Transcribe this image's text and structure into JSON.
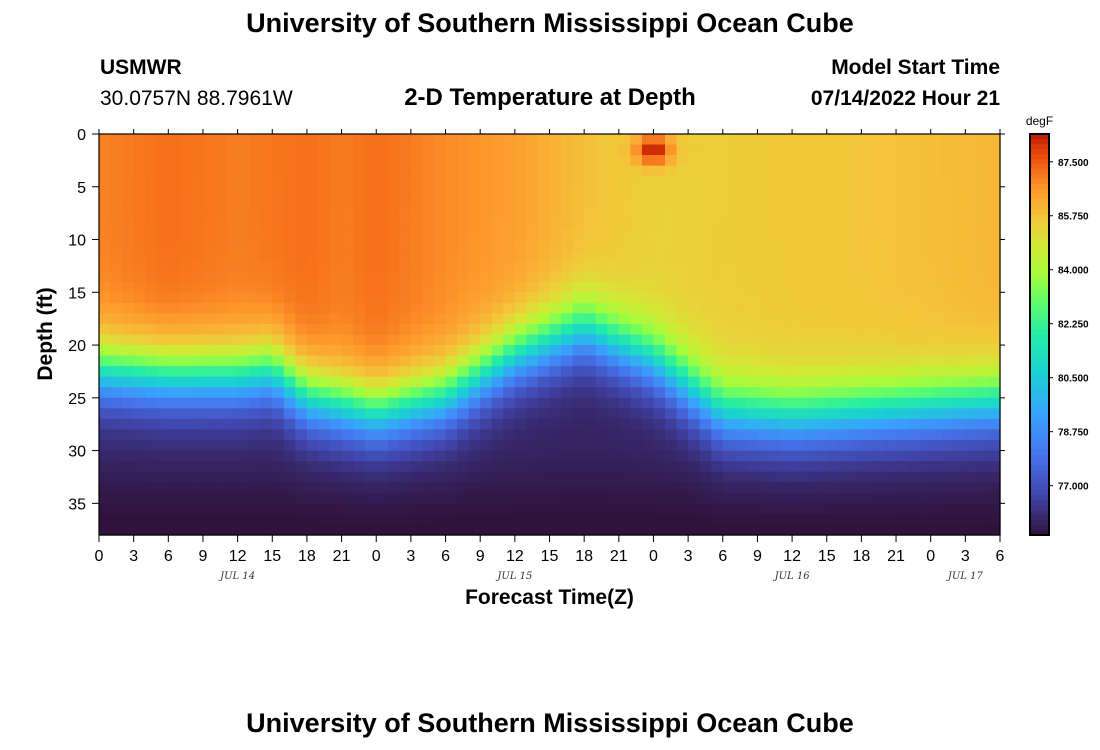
{
  "header": {
    "title": "University of Southern Mississippi Ocean Cube",
    "station": "USMWR",
    "coords": "30.0757N  88.7961W",
    "plot_title": "2-D Temperature at Depth",
    "start_label": "Model Start Time",
    "start_value": "07/14/2022 Hour 21"
  },
  "footer": {
    "title": "University of Southern Mississippi Ocean Cube"
  },
  "chart_data": {
    "type": "heatmap",
    "title": "2-D Temperature at Depth",
    "xlabel": "Forecast Time(Z)",
    "ylabel": "Depth (ft)",
    "xlim": [
      0,
      78
    ],
    "ylim": [
      38,
      0
    ],
    "x_ticks": [
      0,
      3,
      6,
      9,
      12,
      15,
      18,
      21,
      24,
      27,
      30,
      33,
      36,
      39,
      42,
      45,
      48,
      51,
      54,
      57,
      60,
      63,
      66,
      69,
      72,
      75,
      78
    ],
    "x_tick_labels": [
      "0",
      "3",
      "6",
      "9",
      "12",
      "15",
      "18",
      "21",
      "0",
      "3",
      "6",
      "9",
      "12",
      "15",
      "18",
      "21",
      "0",
      "3",
      "6",
      "9",
      "12",
      "15",
      "18",
      "21",
      "0",
      "3",
      "6"
    ],
    "date_labels": [
      {
        "hour": 12,
        "label": "JUL 14"
      },
      {
        "hour": 36,
        "label": "JUL 15"
      },
      {
        "hour": 60,
        "label": "JUL 16"
      },
      {
        "hour": 75,
        "label": "JUL 17"
      }
    ],
    "y_ticks": [
      0,
      5,
      10,
      15,
      20,
      25,
      30,
      35
    ],
    "colorbar": {
      "units": "degF",
      "range": [
        75.4,
        88.4
      ],
      "ticks": [
        87.5,
        85.75,
        84.0,
        82.25,
        80.5,
        78.75,
        77.0
      ],
      "tick_labels": [
        "87.500",
        "85.750",
        "84.000",
        "82.250",
        "80.500",
        "78.750",
        "77.000"
      ]
    },
    "surface_temp_by_hour": {
      "hours": [
        0,
        6,
        12,
        18,
        21,
        24,
        30,
        36,
        42,
        48,
        54,
        60,
        66,
        72,
        78
      ],
      "degF": [
        86.9,
        87.2,
        87.0,
        87.2,
        87.0,
        87.2,
        86.8,
        86.5,
        85.8,
        85.4,
        85.5,
        85.6,
        85.7,
        85.8,
        86.0
      ]
    },
    "thermocline_depth_ft_by_hour": {
      "hours": [
        0,
        6,
        12,
        15,
        18,
        24,
        30,
        36,
        42,
        48,
        54,
        60,
        66,
        72,
        78
      ],
      "depth": [
        20.5,
        21.0,
        21.0,
        20.5,
        23.0,
        24.5,
        23.0,
        19.0,
        16.5,
        19.5,
        24.5,
        25.0,
        24.5,
        24.0,
        23.5
      ]
    },
    "bottom_temp_degF": 75.8,
    "hot_spot": {
      "hour": 48,
      "depth_ft": 1.5,
      "degF": 88.4
    }
  }
}
